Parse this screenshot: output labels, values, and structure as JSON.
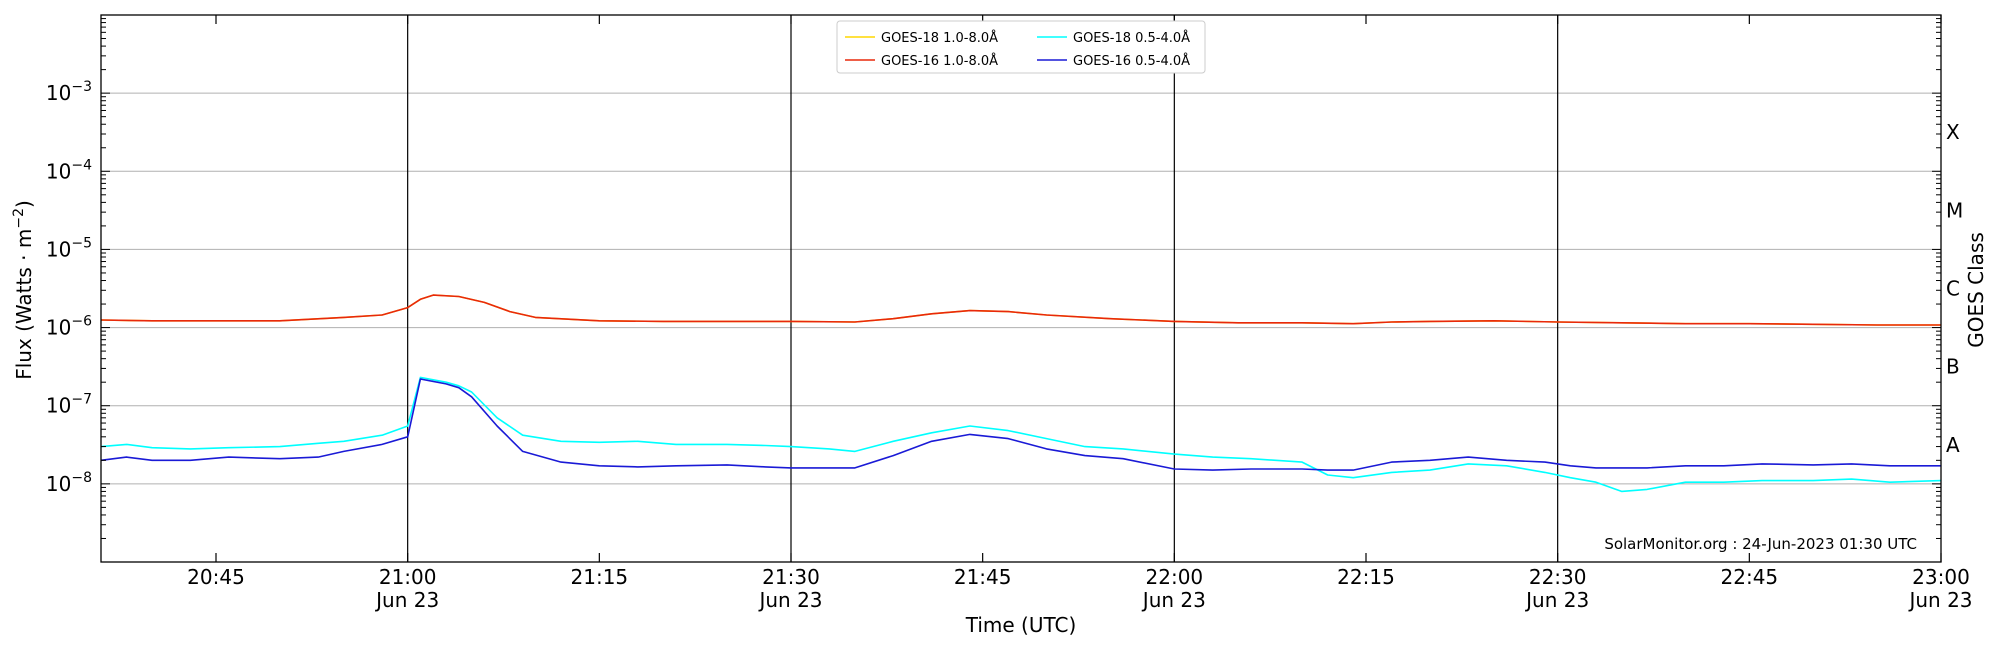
{
  "chart_data": {
    "type": "line",
    "xlabel": "Time (UTC)",
    "ylabel": "Flux (Watts · m",
    "ylabel_sup": "−2",
    "ylabel_end": ")",
    "y2label": "GOES Class",
    "yscale": "log",
    "xlim": [
      "20:36",
      "23:00"
    ],
    "ylim": [
      1e-09,
      0.01
    ],
    "grid": "horizontal",
    "legend_position": "top-center",
    "annotation": "SolarMonitor.org : 24-Jun-2023 01:30 UTC",
    "x_ticks": [
      {
        "time": "20:45",
        "top": "20:45",
        "bottom": ""
      },
      {
        "time": "21:00",
        "top": "21:00",
        "bottom": "Jun 23"
      },
      {
        "time": "21:15",
        "top": "21:15",
        "bottom": ""
      },
      {
        "time": "21:30",
        "top": "21:30",
        "bottom": "Jun 23"
      },
      {
        "time": "21:45",
        "top": "21:45",
        "bottom": ""
      },
      {
        "time": "22:00",
        "top": "22:00",
        "bottom": "Jun 23"
      },
      {
        "time": "22:15",
        "top": "22:15",
        "bottom": ""
      },
      {
        "time": "22:30",
        "top": "22:30",
        "bottom": "Jun 23"
      },
      {
        "time": "22:45",
        "top": "22:45",
        "bottom": ""
      },
      {
        "time": "23:00",
        "top": "23:00",
        "bottom": "Jun 23"
      }
    ],
    "vlines": [
      "21:00",
      "21:30",
      "22:00",
      "22:30"
    ],
    "y_ticks": [
      {
        "value": 1e-08,
        "exp": "−8"
      },
      {
        "value": 1e-07,
        "exp": "−7"
      },
      {
        "value": 1e-06,
        "exp": "−6"
      },
      {
        "value": 1e-05,
        "exp": "−5"
      },
      {
        "value": 0.0001,
        "exp": "−4"
      },
      {
        "value": 0.001,
        "exp": "−3"
      }
    ],
    "goes_classes": [
      {
        "label": "A",
        "value": 1e-08
      },
      {
        "label": "B",
        "value": 1e-07
      },
      {
        "label": "C",
        "value": 1e-06
      },
      {
        "label": "M",
        "value": 1e-05
      },
      {
        "label": "X",
        "value": 0.0001
      }
    ],
    "series": [
      {
        "name": "GOES-18 1.0-8.0Å",
        "color": "#FFD700",
        "points": [
          [
            "20:36",
            1.25e-06
          ],
          [
            "20:40",
            1.22e-06
          ],
          [
            "20:45",
            1.22e-06
          ],
          [
            "20:50",
            1.22e-06
          ],
          [
            "20:55",
            1.35e-06
          ],
          [
            "20:58",
            1.45e-06
          ],
          [
            "21:00",
            1.8e-06
          ],
          [
            "21:01",
            2.3e-06
          ],
          [
            "21:02",
            2.6e-06
          ],
          [
            "21:04",
            2.5e-06
          ],
          [
            "21:06",
            2.1e-06
          ],
          [
            "21:08",
            1.6e-06
          ],
          [
            "21:10",
            1.35e-06
          ],
          [
            "21:15",
            1.22e-06
          ],
          [
            "21:20",
            1.2e-06
          ],
          [
            "21:25",
            1.2e-06
          ],
          [
            "21:30",
            1.2e-06
          ],
          [
            "21:35",
            1.18e-06
          ],
          [
            "21:38",
            1.3e-06
          ],
          [
            "21:41",
            1.5e-06
          ],
          [
            "21:44",
            1.65e-06
          ],
          [
            "21:47",
            1.6e-06
          ],
          [
            "21:50",
            1.45e-06
          ],
          [
            "21:55",
            1.3e-06
          ],
          [
            "22:00",
            1.2e-06
          ],
          [
            "22:05",
            1.15e-06
          ],
          [
            "22:10",
            1.15e-06
          ],
          [
            "22:14",
            1.12e-06
          ],
          [
            "22:17",
            1.18e-06
          ],
          [
            "22:20",
            1.2e-06
          ],
          [
            "22:25",
            1.22e-06
          ],
          [
            "22:30",
            1.18e-06
          ],
          [
            "22:35",
            1.15e-06
          ],
          [
            "22:40",
            1.12e-06
          ],
          [
            "22:45",
            1.12e-06
          ],
          [
            "22:50",
            1.1e-06
          ],
          [
            "22:55",
            1.08e-06
          ],
          [
            "23:00",
            1.08e-06
          ]
        ]
      },
      {
        "name": "GOES-16 1.0-8.0Å",
        "color": "#E8280C",
        "points": [
          [
            "20:36",
            1.25e-06
          ],
          [
            "20:40",
            1.22e-06
          ],
          [
            "20:45",
            1.22e-06
          ],
          [
            "20:50",
            1.22e-06
          ],
          [
            "20:55",
            1.35e-06
          ],
          [
            "20:58",
            1.45e-06
          ],
          [
            "21:00",
            1.8e-06
          ],
          [
            "21:01",
            2.3e-06
          ],
          [
            "21:02",
            2.6e-06
          ],
          [
            "21:04",
            2.5e-06
          ],
          [
            "21:06",
            2.1e-06
          ],
          [
            "21:08",
            1.6e-06
          ],
          [
            "21:10",
            1.35e-06
          ],
          [
            "21:15",
            1.22e-06
          ],
          [
            "21:20",
            1.2e-06
          ],
          [
            "21:25",
            1.2e-06
          ],
          [
            "21:30",
            1.2e-06
          ],
          [
            "21:35",
            1.18e-06
          ],
          [
            "21:38",
            1.3e-06
          ],
          [
            "21:41",
            1.5e-06
          ],
          [
            "21:44",
            1.65e-06
          ],
          [
            "21:47",
            1.6e-06
          ],
          [
            "21:50",
            1.45e-06
          ],
          [
            "21:55",
            1.3e-06
          ],
          [
            "22:00",
            1.2e-06
          ],
          [
            "22:05",
            1.15e-06
          ],
          [
            "22:10",
            1.15e-06
          ],
          [
            "22:14",
            1.12e-06
          ],
          [
            "22:17",
            1.18e-06
          ],
          [
            "22:20",
            1.2e-06
          ],
          [
            "22:25",
            1.22e-06
          ],
          [
            "22:30",
            1.18e-06
          ],
          [
            "22:35",
            1.15e-06
          ],
          [
            "22:40",
            1.12e-06
          ],
          [
            "22:45",
            1.12e-06
          ],
          [
            "22:50",
            1.1e-06
          ],
          [
            "22:55",
            1.08e-06
          ],
          [
            "23:00",
            1.08e-06
          ]
        ]
      },
      {
        "name": "GOES-18 0.5-4.0Å",
        "color": "#00FFFF",
        "points": [
          [
            "20:36",
            3e-08
          ],
          [
            "20:38",
            3.2e-08
          ],
          [
            "20:40",
            2.9e-08
          ],
          [
            "20:43",
            2.8e-08
          ],
          [
            "20:46",
            2.9e-08
          ],
          [
            "20:50",
            3e-08
          ],
          [
            "20:53",
            3.3e-08
          ],
          [
            "20:55",
            3.5e-08
          ],
          [
            "20:58",
            4.2e-08
          ],
          [
            "21:00",
            5.5e-08
          ],
          [
            "21:01",
            2.3e-07
          ],
          [
            "21:03",
            2e-07
          ],
          [
            "21:04",
            1.8e-07
          ],
          [
            "21:05",
            1.5e-07
          ],
          [
            "21:07",
            7e-08
          ],
          [
            "21:09",
            4.2e-08
          ],
          [
            "21:12",
            3.5e-08
          ],
          [
            "21:15",
            3.4e-08
          ],
          [
            "21:18",
            3.5e-08
          ],
          [
            "21:21",
            3.2e-08
          ],
          [
            "21:25",
            3.2e-08
          ],
          [
            "21:28",
            3.1e-08
          ],
          [
            "21:30",
            3e-08
          ],
          [
            "21:33",
            2.8e-08
          ],
          [
            "21:35",
            2.6e-08
          ],
          [
            "21:38",
            3.5e-08
          ],
          [
            "21:41",
            4.5e-08
          ],
          [
            "21:44",
            5.5e-08
          ],
          [
            "21:47",
            4.8e-08
          ],
          [
            "21:50",
            3.8e-08
          ],
          [
            "21:53",
            3e-08
          ],
          [
            "21:56",
            2.8e-08
          ],
          [
            "22:00",
            2.4e-08
          ],
          [
            "22:03",
            2.2e-08
          ],
          [
            "22:06",
            2.1e-08
          ],
          [
            "22:10",
            1.9e-08
          ],
          [
            "22:12",
            1.3e-08
          ],
          [
            "22:14",
            1.2e-08
          ],
          [
            "22:17",
            1.4e-08
          ],
          [
            "22:20",
            1.5e-08
          ],
          [
            "22:23",
            1.8e-08
          ],
          [
            "22:26",
            1.7e-08
          ],
          [
            "22:29",
            1.4e-08
          ],
          [
            "22:31",
            1.2e-08
          ],
          [
            "22:33",
            1.05e-08
          ],
          [
            "22:35",
            8e-09
          ],
          [
            "22:37",
            8.5e-09
          ],
          [
            "22:40",
            1.05e-08
          ],
          [
            "22:43",
            1.05e-08
          ],
          [
            "22:46",
            1.1e-08
          ],
          [
            "22:50",
            1.1e-08
          ],
          [
            "22:53",
            1.15e-08
          ],
          [
            "22:56",
            1.05e-08
          ],
          [
            "23:00",
            1.1e-08
          ]
        ]
      },
      {
        "name": "GOES-16 0.5-4.0Å",
        "color": "#1A1AD6",
        "points": [
          [
            "20:36",
            2e-08
          ],
          [
            "20:38",
            2.2e-08
          ],
          [
            "20:40",
            2e-08
          ],
          [
            "20:43",
            2e-08
          ],
          [
            "20:46",
            2.2e-08
          ],
          [
            "20:50",
            2.1e-08
          ],
          [
            "20:53",
            2.2e-08
          ],
          [
            "20:55",
            2.6e-08
          ],
          [
            "20:58",
            3.2e-08
          ],
          [
            "21:00",
            4e-08
          ],
          [
            "21:01",
            2.2e-07
          ],
          [
            "21:03",
            1.9e-07
          ],
          [
            "21:04",
            1.7e-07
          ],
          [
            "21:05",
            1.3e-07
          ],
          [
            "21:07",
            5.5e-08
          ],
          [
            "21:09",
            2.6e-08
          ],
          [
            "21:12",
            1.9e-08
          ],
          [
            "21:15",
            1.7e-08
          ],
          [
            "21:18",
            1.65e-08
          ],
          [
            "21:21",
            1.7e-08
          ],
          [
            "21:25",
            1.75e-08
          ],
          [
            "21:28",
            1.65e-08
          ],
          [
            "21:30",
            1.6e-08
          ],
          [
            "21:33",
            1.6e-08
          ],
          [
            "21:35",
            1.6e-08
          ],
          [
            "21:38",
            2.3e-08
          ],
          [
            "21:41",
            3.5e-08
          ],
          [
            "21:44",
            4.3e-08
          ],
          [
            "21:47",
            3.8e-08
          ],
          [
            "21:50",
            2.8e-08
          ],
          [
            "21:53",
            2.3e-08
          ],
          [
            "21:56",
            2.1e-08
          ],
          [
            "22:00",
            1.55e-08
          ],
          [
            "22:03",
            1.5e-08
          ],
          [
            "22:06",
            1.55e-08
          ],
          [
            "22:10",
            1.55e-08
          ],
          [
            "22:12",
            1.5e-08
          ],
          [
            "22:14",
            1.5e-08
          ],
          [
            "22:17",
            1.9e-08
          ],
          [
            "22:20",
            2e-08
          ],
          [
            "22:23",
            2.2e-08
          ],
          [
            "22:26",
            2e-08
          ],
          [
            "22:29",
            1.9e-08
          ],
          [
            "22:31",
            1.7e-08
          ],
          [
            "22:33",
            1.6e-08
          ],
          [
            "22:35",
            1.6e-08
          ],
          [
            "22:37",
            1.6e-08
          ],
          [
            "22:40",
            1.7e-08
          ],
          [
            "22:43",
            1.7e-08
          ],
          [
            "22:46",
            1.8e-08
          ],
          [
            "22:50",
            1.75e-08
          ],
          [
            "22:53",
            1.8e-08
          ],
          [
            "22:56",
            1.7e-08
          ],
          [
            "23:00",
            1.7e-08
          ]
        ]
      }
    ]
  }
}
